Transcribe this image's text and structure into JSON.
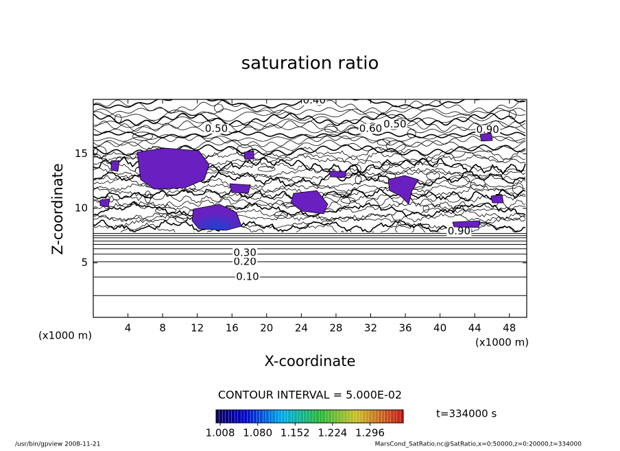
{
  "chart_data": {
    "type": "contour",
    "title": "saturation ratio",
    "x_label": "X-coordinate",
    "y_label": "Z-coordinate",
    "x_unit": "(x1000 m)",
    "xlim": [
      0,
      50
    ],
    "xticks": [
      4,
      8,
      12,
      16,
      20,
      24,
      28,
      32,
      36,
      40,
      44,
      48
    ],
    "ylim": [
      0,
      20
    ],
    "yticks": [
      5,
      10,
      15
    ],
    "stratified_contours_z": [
      2.0,
      3.7,
      5.1,
      5.8,
      6.3,
      6.7,
      7.0,
      7.3,
      7.5,
      7.7
    ],
    "contour_labels": [
      {
        "label": "0.10",
        "value": 0.1,
        "x": 17.8,
        "z": 3.7
      },
      {
        "label": "0.20",
        "value": 0.2,
        "x": 17.5,
        "z": 5.1
      },
      {
        "label": "0.30",
        "value": 0.3,
        "x": 17.5,
        "z": 5.9
      },
      {
        "label": "0.40",
        "value": 0.4,
        "x": 25.5,
        "z": 19.9
      },
      {
        "label": "0.50",
        "value": 0.5,
        "x": 14.2,
        "z": 17.3
      },
      {
        "label": "0.60",
        "value": 0.6,
        "x": 32.0,
        "z": 17.3
      },
      {
        "label": "0.50",
        "value": 0.5,
        "x": 34.8,
        "z": 17.7
      },
      {
        "label": "0.90",
        "value": 0.9,
        "x": 45.5,
        "z": 17.2
      },
      {
        "label": "0.90",
        "value": 0.9,
        "x": 42.2,
        "z": 7.9
      }
    ],
    "contour_interval": "CONTOUR INTERVAL = 5.000E-02",
    "time_label": "t=334000 s",
    "colorbar": {
      "clim": [
        1.0,
        1.36
      ],
      "ticks": [
        1.008,
        {
          "value": 1.08,
          "label": "1.080"
        },
        1.152,
        1.224,
        1.296
      ]
    },
    "footer_left": "/usr/bin/gpview   2008-11-21",
    "footer_right": "MarsCond_SatRatio.nc@SatRatio,x=0:50000,z=0:20000,t=334000"
  }
}
